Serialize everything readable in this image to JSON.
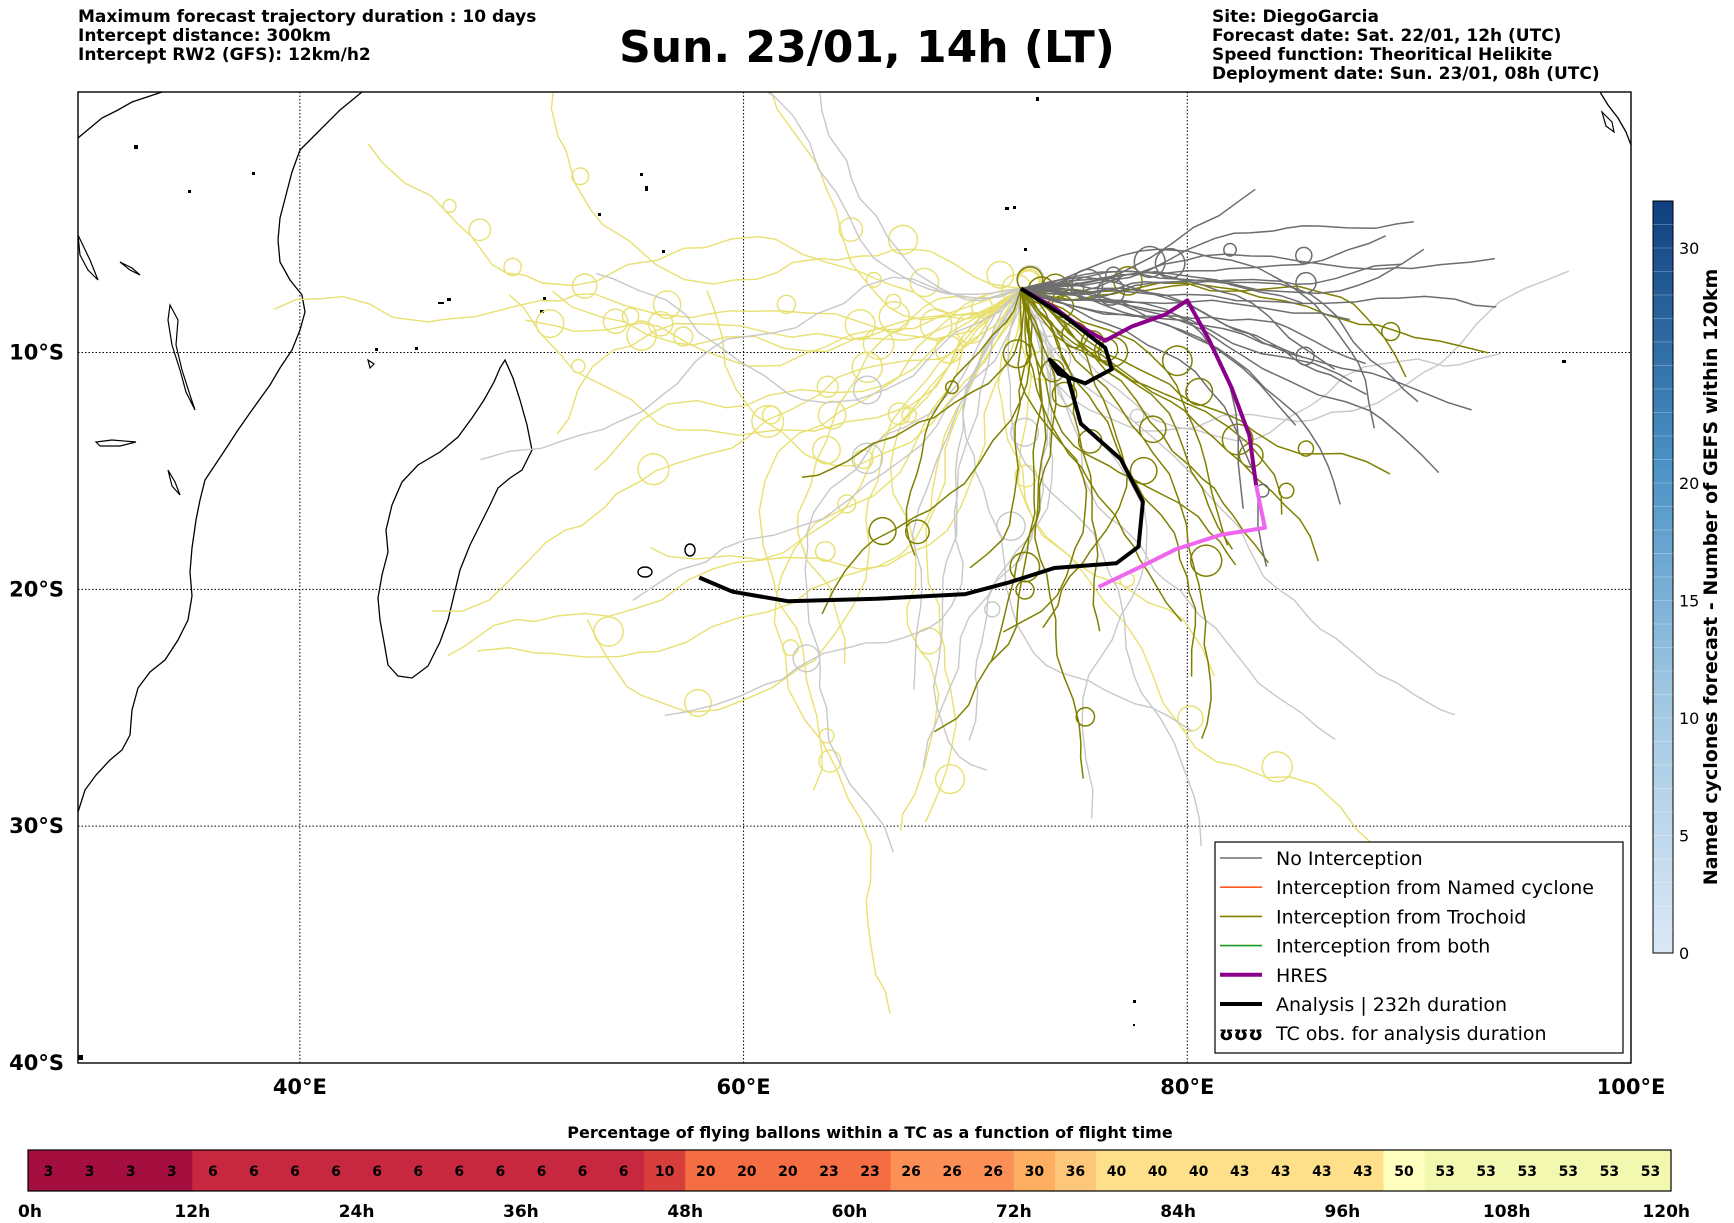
{
  "header": {
    "left_lines": [
      "Maximum forecast trajectory duration : 10 days",
      "Intercept distance: 300km",
      "Intercept RW2 (GFS):  12km/h2"
    ],
    "title": "Sun. 23/01, 14h (LT)",
    "right_lines": [
      "Site: DiegoGarcia",
      "Forecast date: Sat. 22/01, 12h (UTC)",
      "Speed function: Theoritical Helikite",
      "Deployment date: Sun. 23/01, 08h (UTC)"
    ]
  },
  "colors": {
    "no_interception": "#6e6e6e",
    "named_cyclone": "#ff5a1e",
    "trochoid": "#808000",
    "both": "#1e9a1e",
    "hres": "#8b008b",
    "hres_tail": "#ee66ee",
    "analysis": "#000000",
    "light_grey_tracks": "#c8c8c8",
    "light_yellow_tracks": "#e8e070"
  },
  "chart_data": [
    {
      "type": "map_trajectories",
      "map_extent": {
        "lon": [
          30,
          100
        ],
        "lat": [
          -40,
          1
        ]
      },
      "x_ticks": [
        40,
        60,
        80,
        100
      ],
      "x_tick_labels": [
        "40°E",
        "60°E",
        "80°E",
        "100°E"
      ],
      "y_ticks": [
        -10,
        -20,
        -30,
        -40
      ],
      "y_tick_labels": [
        "10°S",
        "20°S",
        "30°S",
        "40°S"
      ],
      "grid": true,
      "deployment_site": {
        "lon": 72.5,
        "lat": -7.3
      },
      "legend_position": "bottom-right",
      "legend": [
        {
          "label": "No Interception",
          "style": "no_interception"
        },
        {
          "label": "Interception from Named cyclone",
          "style": "named_cyclone"
        },
        {
          "label": "Interception from Trochoid",
          "style": "trochoid"
        },
        {
          "label": "Interception from both",
          "style": "both"
        },
        {
          "label": "HRES",
          "style": "hres"
        },
        {
          "label": "Analysis | 232h duration",
          "style": "analysis"
        },
        {
          "label": "TC obs. for analysis duration",
          "style": "tc_symbol",
          "symbol": "ʊʊʊ"
        }
      ],
      "analysis_track": [
        [
          72.5,
          -7.3
        ],
        [
          74.5,
          -8.5
        ],
        [
          76.3,
          -9.8
        ],
        [
          76.6,
          -10.7
        ],
        [
          75.4,
          -11.3
        ],
        [
          74.2,
          -10.9
        ],
        [
          73.8,
          -10.3
        ],
        [
          74.6,
          -11.0
        ],
        [
          75.2,
          -13.0
        ],
        [
          77.0,
          -14.5
        ],
        [
          78.0,
          -16.3
        ],
        [
          77.8,
          -18.2
        ],
        [
          76.8,
          -18.9
        ],
        [
          74.0,
          -19.1
        ],
        [
          72.0,
          -19.7
        ],
        [
          70.0,
          -20.2
        ],
        [
          66.0,
          -20.4
        ],
        [
          62.0,
          -20.5
        ],
        [
          59.5,
          -20.1
        ],
        [
          58.0,
          -19.5
        ]
      ],
      "hres_track": [
        [
          72.5,
          -7.3
        ],
        [
          74.0,
          -8.1
        ],
        [
          75.0,
          -8.8
        ],
        [
          76.3,
          -9.5
        ],
        [
          77.5,
          -8.9
        ],
        [
          79.0,
          -8.4
        ],
        [
          80.0,
          -7.8
        ],
        [
          81.0,
          -9.5
        ],
        [
          82.0,
          -11.5
        ],
        [
          82.8,
          -13.5
        ],
        [
          83.1,
          -15.6
        ]
      ],
      "hres_tail": [
        [
          83.1,
          -15.6
        ],
        [
          83.5,
          -17.4
        ],
        [
          81.5,
          -17.7
        ],
        [
          79.5,
          -18.3
        ],
        [
          78.0,
          -19.0
        ],
        [
          76.0,
          -19.9
        ]
      ],
      "tc_obs": [
        {
          "lon": 55.6,
          "lat": -21.0
        },
        {
          "lon": 57.5,
          "lat": -20.2
        }
      ]
    },
    {
      "type": "colorbar",
      "label": "Named cyclones forecast - Number of GEFS within 120km",
      "orientation": "vertical",
      "range": [
        0,
        32
      ],
      "ticks": [
        0,
        5,
        10,
        15,
        20,
        30
      ],
      "colors": [
        "#dbe8f6",
        "#1a4f92"
      ]
    },
    {
      "type": "heat_strip",
      "title": "Percentage of flying ballons within a TC as a function of flight time",
      "tick_labels": [
        "0h",
        "12h",
        "24h",
        "36h",
        "48h",
        "60h",
        "72h",
        "84h",
        "96h",
        "108h",
        "120h"
      ],
      "values": [
        3,
        3,
        3,
        3,
        6,
        6,
        6,
        6,
        6,
        6,
        6,
        6,
        6,
        6,
        6,
        10,
        20,
        20,
        20,
        23,
        23,
        26,
        26,
        26,
        30,
        36,
        40,
        40,
        40,
        43,
        43,
        43,
        43,
        50,
        53,
        53,
        53,
        53,
        53,
        53
      ]
    }
  ]
}
